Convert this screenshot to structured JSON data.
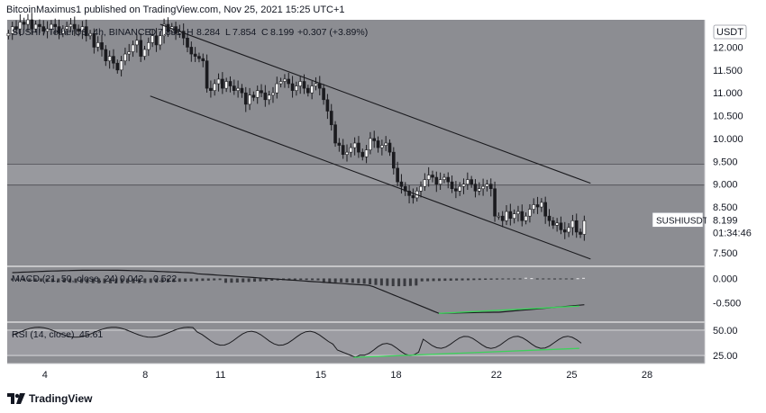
{
  "header": {
    "published": "BitcoinMaximus1 published on TradingView.com, Nov 25, 2021 15:25 UTC+1"
  },
  "footer": {
    "brand": "TradingView"
  },
  "colors": {
    "background": "#8c8d92",
    "grid_line": "#6e6f74",
    "candle_up": "#ffffff",
    "candle_down": "#1b1b1f",
    "channel": "#1b1b1f",
    "macd_line": "#1b1b1f",
    "rsi_line": "#1b1b1f",
    "divergence": "#3dd15b",
    "zone": "#b0b1b5",
    "rsi_band": "#a9aaae"
  },
  "chart_data": [
    {
      "type": "candlestick",
      "symbol": "SUSHI / TetherUS, 4h, BINANCE",
      "legend": {
        "symbol_label": "SUSHI / TetherUS, 4h, BINANCE",
        "o_label": "O",
        "o_value": "7.891",
        "h_label": "H",
        "h_value": "8.284",
        "l_label": "L",
        "l_value": "7.854",
        "c_label": "C",
        "c_value": "8.199",
        "change": "+0.307 (+3.89%)"
      },
      "currency": "USDT",
      "last_price_label": "SUSHIUSDT",
      "last_price": "8.199",
      "countdown": "01:34:46",
      "ylim": [
        7.2,
        12.6
      ],
      "y_ticks": [
        "12.000",
        "11.500",
        "11.000",
        "10.500",
        "10.000",
        "9.500",
        "9.000",
        "8.500",
        "7.500"
      ],
      "x_ticks": [
        {
          "label": "4",
          "day": 4
        },
        {
          "label": "8",
          "day": 8
        },
        {
          "label": "11",
          "day": 11
        },
        {
          "label": "15",
          "day": 15
        },
        {
          "label": "18",
          "day": 18
        },
        {
          "label": "22",
          "day": 22
        },
        {
          "label": "25",
          "day": 25
        },
        {
          "label": "28",
          "day": 28
        }
      ],
      "horizontal_zone": [
        8.98,
        9.44
      ],
      "channel_upper": [
        [
          8.6,
          12.5
        ],
        [
          25.75,
          9.02
        ]
      ],
      "channel_lower": [
        [
          8.2,
          10.93
        ],
        [
          25.75,
          7.36
        ]
      ],
      "closes": [
        12.3,
        12.45,
        12.4,
        12.55,
        12.5,
        12.6,
        12.4,
        12.5,
        12.45,
        12.35,
        12.4,
        12.5,
        12.45,
        12.3,
        12.4,
        12.45,
        12.5,
        12.4,
        12.35,
        12.45,
        12.25,
        12.3,
        12.0,
        12.1,
        11.95,
        11.7,
        11.8,
        11.65,
        11.5,
        11.7,
        11.85,
        11.9,
        12.05,
        12.15,
        11.8,
        11.95,
        12.1,
        12.25,
        12.05,
        12.25,
        12.5,
        12.35,
        12.45,
        12.3,
        12.35,
        12.2,
        12.0,
        11.85,
        11.8,
        11.75,
        11.7,
        11.1,
        11.05,
        11.2,
        11.3,
        11.1,
        11.25,
        11.15,
        11.05,
        11.1,
        11.0,
        10.75,
        10.95,
        10.9,
        11.05,
        11.0,
        10.85,
        10.95,
        11.0,
        11.2,
        11.25,
        11.3,
        11.2,
        11.05,
        11.15,
        11.25,
        11.1,
        11.0,
        11.15,
        11.2,
        11.1,
        10.85,
        10.6,
        10.3,
        9.9,
        9.85,
        9.65,
        9.7,
        9.8,
        9.9,
        9.7,
        9.6,
        9.75,
        10.0,
        9.95,
        9.8,
        9.85,
        9.9,
        9.7,
        9.35,
        9.05,
        8.95,
        8.85,
        8.75,
        8.7,
        8.85,
        8.95,
        9.1,
        9.2,
        9.15,
        9.0,
        9.1,
        9.15,
        9.05,
        8.9,
        8.85,
        8.95,
        9.0,
        9.1,
        9.0,
        8.85,
        8.9,
        8.95,
        9.0,
        8.9,
        8.3,
        8.3,
        8.2,
        8.4,
        8.25,
        8.35,
        8.4,
        8.2,
        8.3,
        8.45,
        8.55,
        8.5,
        8.6,
        8.3,
        8.2,
        8.1,
        8.15,
        8.0,
        7.95,
        8.05,
        8.2,
        7.95,
        7.9,
        8.2
      ],
      "macd": {
        "params": "MACD (21, 50, close, 24)",
        "value1": "0.042",
        "value2": "0.522",
        "ylim": [
          -0.9,
          0.25
        ],
        "y_ticks": [
          "0.000",
          "-0.500"
        ]
      },
      "rsi": {
        "params": "RSI (14, close)",
        "value": "45.61",
        "ylim": [
          17,
          58
        ],
        "y_ticks": [
          "50.00",
          "25.00"
        ]
      }
    }
  ]
}
